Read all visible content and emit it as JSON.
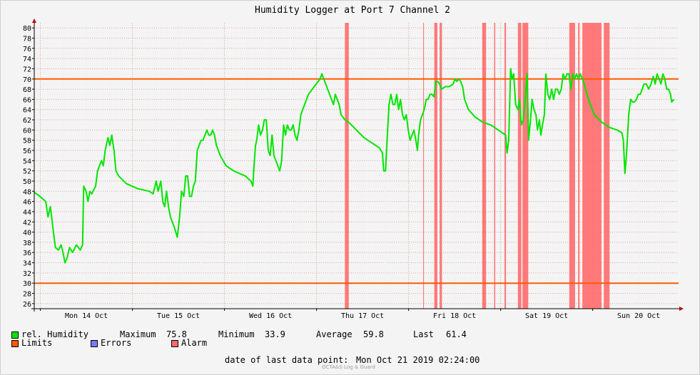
{
  "chart_data": {
    "type": "line",
    "title": "Humidity Logger at Port 7 Channel 2",
    "ylim": [
      25,
      81
    ],
    "yticks": [
      26,
      28,
      30,
      32,
      34,
      36,
      38,
      40,
      42,
      44,
      46,
      48,
      50,
      52,
      54,
      56,
      58,
      60,
      62,
      64,
      66,
      68,
      70,
      72,
      74,
      76,
      78,
      80
    ],
    "xlim_hours": [
      0,
      168
    ],
    "x_axis_start": "Sun Oct 13 2019 22:24",
    "day_labels": [
      "Mon 14 Oct",
      "Tue 15 Oct",
      "Wed 16 Oct",
      "Thu 17 Oct",
      "Fri 18 Oct",
      "Sat 19 Oct",
      "Sun 20 Oct"
    ],
    "grid": true,
    "limits": [
      30,
      70
    ],
    "series": [
      {
        "name": "rel. Humidity",
        "color": "#00e600",
        "points": [
          [
            0,
            47.8
          ],
          [
            1.5,
            47
          ],
          [
            3,
            46
          ],
          [
            3.6,
            43
          ],
          [
            4.2,
            45
          ],
          [
            5,
            40
          ],
          [
            5.5,
            37
          ],
          [
            6.3,
            36.5
          ],
          [
            7,
            37.5
          ],
          [
            7.5,
            36
          ],
          [
            8,
            34
          ],
          [
            8.6,
            35
          ],
          [
            9.2,
            37
          ],
          [
            10,
            36
          ],
          [
            11,
            37.5
          ],
          [
            12,
            36.5
          ],
          [
            12.6,
            37.5
          ],
          [
            12.9,
            49
          ],
          [
            13.5,
            48
          ],
          [
            14,
            46
          ],
          [
            14.5,
            48
          ],
          [
            15,
            47.5
          ],
          [
            16,
            49
          ],
          [
            16.5,
            52
          ],
          [
            17,
            53
          ],
          [
            17.5,
            54
          ],
          [
            18,
            53
          ],
          [
            18.5,
            56
          ],
          [
            19.2,
            58.5
          ],
          [
            19.7,
            57
          ],
          [
            20.2,
            59
          ],
          [
            20.8,
            56
          ],
          [
            21.3,
            52
          ],
          [
            22,
            51
          ],
          [
            24,
            49.5
          ],
          [
            27,
            48.5
          ],
          [
            30,
            48
          ],
          [
            31,
            47.5
          ],
          [
            31.8,
            50
          ],
          [
            32.3,
            48
          ],
          [
            33,
            50
          ],
          [
            33.5,
            46
          ],
          [
            34,
            45
          ],
          [
            34.5,
            48
          ],
          [
            35,
            45
          ],
          [
            35.5,
            43
          ],
          [
            36.5,
            41
          ],
          [
            37.3,
            39
          ],
          [
            37.9,
            43
          ],
          [
            38.4,
            48
          ],
          [
            39,
            47
          ],
          [
            39.5,
            51
          ],
          [
            40,
            51
          ],
          [
            40.5,
            47
          ],
          [
            41,
            47
          ],
          [
            41.5,
            49
          ],
          [
            42,
            50
          ],
          [
            42.5,
            56
          ],
          [
            43,
            57
          ],
          [
            43.5,
            58
          ],
          [
            44,
            58
          ],
          [
            44.5,
            59
          ],
          [
            45,
            60
          ],
          [
            45.5,
            59
          ],
          [
            46,
            59
          ],
          [
            46.5,
            60
          ],
          [
            47,
            59
          ],
          [
            47.5,
            57
          ],
          [
            48.5,
            55
          ],
          [
            50,
            53
          ],
          [
            52,
            52
          ],
          [
            55,
            51
          ],
          [
            56.5,
            50
          ],
          [
            57,
            49
          ],
          [
            57.3,
            53
          ],
          [
            57.7,
            57
          ],
          [
            58,
            58
          ],
          [
            58.5,
            61
          ],
          [
            59,
            59
          ],
          [
            59.5,
            60
          ],
          [
            60,
            62
          ],
          [
            60.5,
            62
          ],
          [
            61,
            56
          ],
          [
            61.5,
            55
          ],
          [
            62,
            59
          ],
          [
            62.5,
            55
          ],
          [
            63,
            54
          ],
          [
            63.5,
            53
          ],
          [
            64,
            52
          ],
          [
            64.5,
            54
          ],
          [
            65,
            61
          ],
          [
            65.5,
            59
          ],
          [
            66,
            61
          ],
          [
            66.5,
            60
          ],
          [
            67,
            60
          ],
          [
            67.5,
            61
          ],
          [
            68,
            59
          ],
          [
            68.5,
            58
          ],
          [
            69,
            60
          ],
          [
            69.5,
            63
          ],
          [
            70.5,
            65
          ],
          [
            71.5,
            67
          ],
          [
            72.5,
            68
          ],
          [
            73.5,
            69
          ],
          [
            74.5,
            70
          ],
          [
            75,
            71
          ],
          [
            75.5,
            70
          ],
          [
            76.5,
            68
          ],
          [
            77.5,
            66
          ],
          [
            78,
            65
          ],
          [
            78.5,
            67
          ],
          [
            79,
            66
          ],
          [
            79.5,
            65
          ],
          [
            80,
            63
          ],
          [
            81,
            62
          ],
          [
            82,
            61.5
          ],
          [
            84,
            60
          ],
          [
            86,
            58.5
          ],
          [
            88,
            57.5
          ],
          [
            90,
            56.5
          ],
          [
            90.8,
            55.5
          ],
          [
            91.1,
            52
          ],
          [
            91.6,
            52
          ],
          [
            92,
            58
          ],
          [
            92.5,
            65
          ],
          [
            93,
            67
          ],
          [
            93.5,
            65
          ],
          [
            94,
            65
          ],
          [
            94.5,
            67
          ],
          [
            95,
            64
          ],
          [
            95.5,
            66
          ],
          [
            96,
            63
          ],
          [
            96.5,
            62
          ],
          [
            97,
            63
          ],
          [
            97.5,
            60
          ],
          [
            98,
            58
          ],
          [
            98.5,
            59
          ],
          [
            99,
            60
          ],
          [
            99.5,
            58
          ],
          [
            99.9,
            56
          ],
          [
            100.2,
            59
          ],
          [
            100.7,
            62
          ],
          [
            101.2,
            63
          ],
          [
            101.7,
            64
          ],
          [
            102.2,
            66
          ],
          [
            102.7,
            66
          ],
          [
            103.2,
            67
          ],
          [
            103.7,
            67
          ],
          [
            104.2,
            66.5
          ],
          [
            104.7,
            69.5
          ],
          [
            105.2,
            69.5
          ],
          [
            105.7,
            69
          ],
          [
            106.2,
            68
          ],
          [
            107.2,
            68.5
          ],
          [
            108.2,
            68.5
          ],
          [
            109.2,
            69
          ],
          [
            109.7,
            70
          ],
          [
            110.2,
            69.5
          ],
          [
            110.7,
            70
          ],
          [
            111.2,
            69.5
          ],
          [
            111.7,
            68.5
          ],
          [
            112.2,
            66
          ],
          [
            113.2,
            64
          ],
          [
            115,
            62.5
          ],
          [
            117,
            61.5
          ],
          [
            119,
            61
          ],
          [
            121,
            60
          ],
          [
            122.9,
            59
          ],
          [
            123.3,
            55.5
          ],
          [
            123.7,
            58
          ],
          [
            124.2,
            72
          ],
          [
            124.6,
            70
          ],
          [
            125,
            71
          ],
          [
            125.5,
            65
          ],
          [
            126.1,
            64
          ],
          [
            126.5,
            66
          ],
          [
            127,
            61
          ],
          [
            127.5,
            62
          ],
          [
            128,
            66
          ],
          [
            128.5,
            71
          ],
          [
            128.9,
            58
          ],
          [
            129.4,
            62
          ],
          [
            129.8,
            66
          ],
          [
            130.3,
            64
          ],
          [
            130.8,
            63
          ],
          [
            131.2,
            60
          ],
          [
            131.7,
            62
          ],
          [
            132.1,
            59
          ],
          [
            132.5,
            61
          ],
          [
            133,
            63
          ],
          [
            133.4,
            71
          ],
          [
            133.9,
            67
          ],
          [
            134.4,
            66
          ],
          [
            134.9,
            68
          ],
          [
            135.4,
            66
          ],
          [
            135.9,
            68
          ],
          [
            136.4,
            68
          ],
          [
            136.9,
            67
          ],
          [
            137.4,
            68
          ],
          [
            137.9,
            71
          ],
          [
            138.4,
            70
          ],
          [
            138.9,
            71
          ],
          [
            139.4,
            71
          ],
          [
            139.9,
            68
          ],
          [
            140.4,
            71
          ],
          [
            140.9,
            70
          ],
          [
            141.4,
            71
          ],
          [
            141.9,
            70
          ],
          [
            142.4,
            71
          ],
          [
            142.9,
            70
          ],
          [
            143.4,
            69
          ],
          [
            144.5,
            66
          ],
          [
            146,
            63
          ],
          [
            148,
            61.5
          ],
          [
            150,
            60.5
          ],
          [
            152,
            60
          ],
          [
            153.2,
            59.5
          ],
          [
            153.6,
            58
          ],
          [
            154,
            51.5
          ],
          [
            154.4,
            55
          ],
          [
            155,
            63
          ],
          [
            155.5,
            66
          ],
          [
            156,
            65.5
          ],
          [
            156.5,
            65.5
          ],
          [
            157,
            66
          ],
          [
            157.5,
            67
          ],
          [
            158,
            67
          ],
          [
            158.5,
            68
          ],
          [
            159,
            69
          ],
          [
            159.6,
            69
          ],
          [
            160.2,
            68
          ],
          [
            160.8,
            69
          ],
          [
            161.4,
            70.5
          ],
          [
            161.9,
            69
          ],
          [
            162.4,
            71
          ],
          [
            162.9,
            70
          ],
          [
            163.4,
            69
          ],
          [
            163.9,
            71
          ],
          [
            164.4,
            70
          ],
          [
            164.9,
            68
          ],
          [
            165.4,
            68
          ],
          [
            165.9,
            67
          ],
          [
            166.2,
            65.5
          ],
          [
            166.8,
            66
          ]
        ]
      }
    ],
    "alarm_periods_hours": [
      [
        81,
        82
      ],
      [
        101.4,
        101.6
      ],
      [
        104.3,
        105.1
      ],
      [
        105.7,
        106.3
      ],
      [
        116.8,
        117.8
      ],
      [
        119.9,
        120.2
      ],
      [
        122.6,
        123
      ],
      [
        126.1,
        127
      ],
      [
        127.3,
        128.8
      ],
      [
        139.5,
        141
      ],
      [
        141.8,
        142.2
      ],
      [
        142.9,
        147.9
      ],
      [
        148.5,
        150
      ]
    ],
    "limit_color": "#ff5a00",
    "alarm_color": "#ff6b6b"
  },
  "legend": {
    "humidity_label": "rel. Humidity",
    "maximum_label": "Maximum",
    "maximum_value": "75.8",
    "minimum_label": "Minimum",
    "minimum_value": "33.9",
    "average_label": "Average",
    "average_value": "59.8",
    "last_label": "Last",
    "last_value": "61.4",
    "limits_label": "Limits",
    "errors_label": "Errors",
    "alarm_label": "Alarm",
    "humidity_color": "#00e600",
    "limits_color": "#ff5a00",
    "errors_color": "#7b7bff",
    "alarm_color": "#ff6b6b"
  },
  "footer": {
    "date_label": "date of last data point:",
    "date_value": "Mon Oct 21 2019 02:24:00",
    "watermark": "OCTA&S Log & Guard"
  }
}
